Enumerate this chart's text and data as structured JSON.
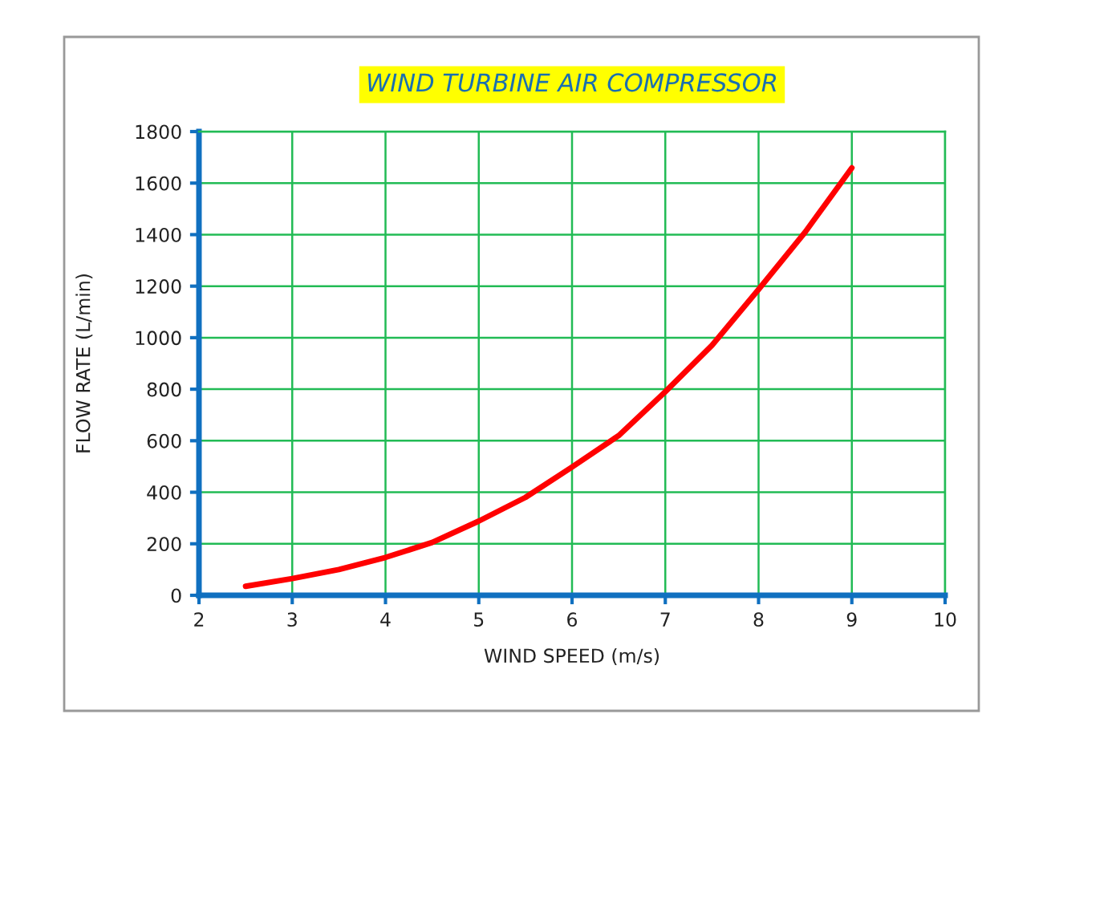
{
  "chart_data": {
    "type": "line",
    "title": "WIND TURBINE AIR COMPRESSOR",
    "xlabel": "WIND SPEED (m/s)",
    "ylabel": "FLOW RATE (L/min)",
    "series": [
      {
        "color": "#ff0000",
        "x": [
          2.5,
          3,
          3.5,
          4,
          4.5,
          5,
          5.5,
          6,
          6.5,
          7,
          7.5,
          8,
          8.5,
          9
        ],
        "values": [
          35,
          65,
          100,
          147,
          205,
          288,
          380,
          498,
          620,
          790,
          970,
          1187,
          1410,
          1659
        ]
      }
    ],
    "xlim": [
      2,
      10
    ],
    "xticks": [
      2,
      3,
      4,
      5,
      6,
      7,
      8,
      9,
      10
    ],
    "ylim": [
      0,
      1800
    ],
    "yticks": [
      0,
      200,
      400,
      600,
      800,
      1000,
      1200,
      1400,
      1600,
      1800
    ],
    "grid": true,
    "marker": "none",
    "line_style": "solid"
  }
}
